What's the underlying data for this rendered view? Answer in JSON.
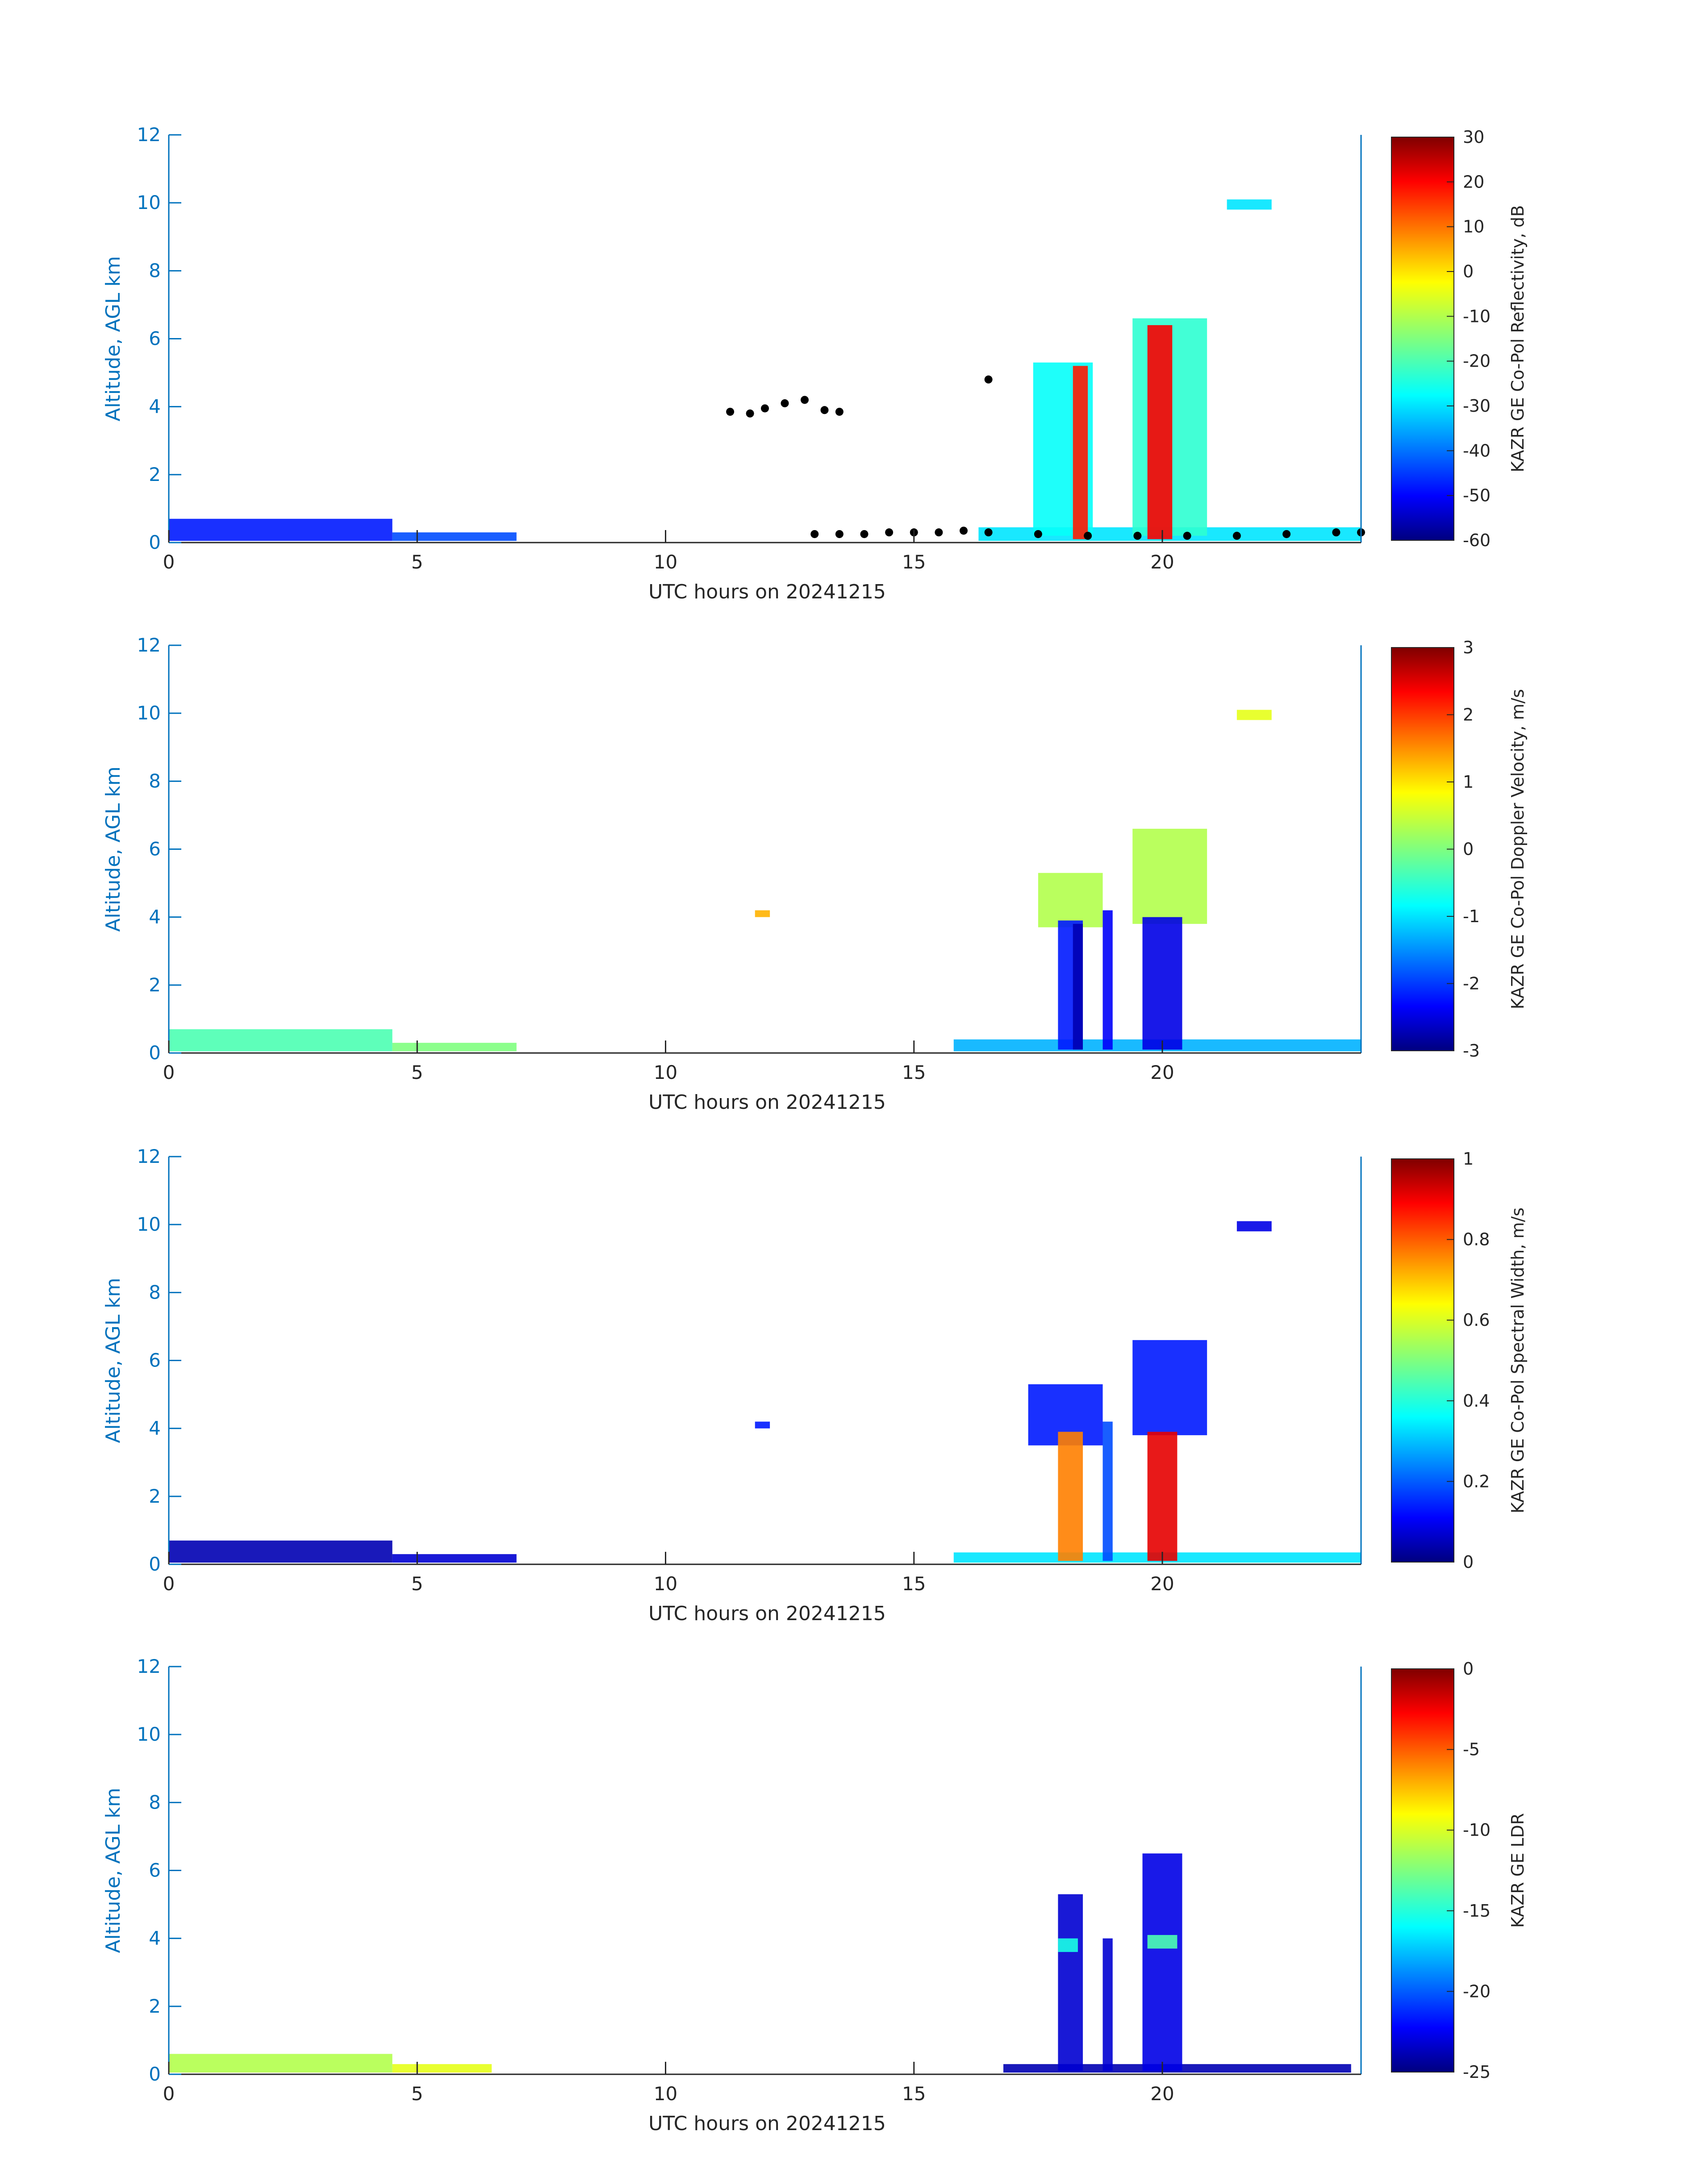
{
  "colors": {
    "axis_left": "#0072BD",
    "axis_text": "#262626",
    "colormap": [
      "#00007F",
      "#0000FF",
      "#007FFF",
      "#00FFFF",
      "#7FFF7F",
      "#FFFF00",
      "#FF7F00",
      "#FF0000",
      "#7F0000"
    ]
  },
  "chart_data": [
    {
      "type": "heatmap",
      "xlabel": "UTC hours on 20241215",
      "ylabel": "Altitude, AGL km",
      "xlim": [
        0,
        24
      ],
      "ylim": [
        0,
        12
      ],
      "x_ticks": [
        "0",
        "5",
        "10",
        "15",
        "20"
      ],
      "y_ticks": [
        "0",
        "2",
        "4",
        "6",
        "8",
        "10",
        "12"
      ],
      "colorbar": {
        "label": "KAZR GE Co-Pol Reflectivity, dB",
        "range": [
          -60,
          30
        ],
        "ticks": [
          "30",
          "20",
          "10",
          "0",
          "-10",
          "-20",
          "-30",
          "-40",
          "-50",
          "-60"
        ]
      },
      "regions": [
        {
          "x0": 0,
          "x1": 4.5,
          "y0": 0.05,
          "y1": 0.7,
          "level": 0.15
        },
        {
          "x0": 4.5,
          "x1": 7,
          "y0": 0.05,
          "y1": 0.3,
          "level": 0.2
        },
        {
          "x0": 16.3,
          "x1": 24,
          "y0": 0.05,
          "y1": 0.45,
          "level": 0.35
        },
        {
          "x0": 17.4,
          "x1": 18.6,
          "y0": 0.2,
          "y1": 5.3,
          "level": 0.38
        },
        {
          "x0": 18.2,
          "x1": 18.5,
          "y0": 0.1,
          "y1": 5.2,
          "level": 0.85
        },
        {
          "x0": 19.4,
          "x1": 20.9,
          "y0": 0.2,
          "y1": 6.6,
          "level": 0.42
        },
        {
          "x0": 19.7,
          "x1": 20.2,
          "y0": 0.1,
          "y1": 6.4,
          "level": 0.88
        },
        {
          "x0": 21.3,
          "x1": 22.2,
          "y0": 9.8,
          "y1": 10.1,
          "level": 0.35
        }
      ],
      "cloud_base_points": [
        [
          11.3,
          3.85
        ],
        [
          11.7,
          3.8
        ],
        [
          12.0,
          3.95
        ],
        [
          12.4,
          4.1
        ],
        [
          12.8,
          4.2
        ],
        [
          13.2,
          3.9
        ],
        [
          13.5,
          3.85
        ],
        [
          13.0,
          0.25
        ],
        [
          13.5,
          0.25
        ],
        [
          14.0,
          0.25
        ],
        [
          14.5,
          0.3
        ],
        [
          15.0,
          0.3
        ],
        [
          15.5,
          0.3
        ],
        [
          16.0,
          0.35
        ],
        [
          16.5,
          0.3
        ],
        [
          17.5,
          0.25
        ],
        [
          18.5,
          0.2
        ],
        [
          19.5,
          0.2
        ],
        [
          20.5,
          0.2
        ],
        [
          21.5,
          0.2
        ],
        [
          22.5,
          0.25
        ],
        [
          23.5,
          0.3
        ],
        [
          24.0,
          0.3
        ],
        [
          16.5,
          4.8
        ]
      ]
    },
    {
      "type": "heatmap",
      "xlabel": "UTC hours on 20241215",
      "ylabel": "Altitude, AGL km",
      "xlim": [
        0,
        24
      ],
      "ylim": [
        0,
        12
      ],
      "x_ticks": [
        "0",
        "5",
        "10",
        "15",
        "20"
      ],
      "y_ticks": [
        "0",
        "2",
        "4",
        "6",
        "8",
        "10",
        "12"
      ],
      "colorbar": {
        "label": "KAZR GE Co-Pol Doppler Velocity, m/s",
        "range": [
          -3,
          3
        ],
        "ticks": [
          "3",
          "2",
          "1",
          "0",
          "-1",
          "-2",
          "-3"
        ]
      },
      "regions": [
        {
          "x0": 0,
          "x1": 4.5,
          "y0": 0.05,
          "y1": 0.7,
          "level": 0.45
        },
        {
          "x0": 4.5,
          "x1": 7,
          "y0": 0.05,
          "y1": 0.3,
          "level": 0.5
        },
        {
          "x0": 15.8,
          "x1": 24,
          "y0": 0.05,
          "y1": 0.4,
          "level": 0.3
        },
        {
          "x0": 17.5,
          "x1": 18.8,
          "y0": 3.7,
          "y1": 5.3,
          "level": 0.55
        },
        {
          "x0": 17.9,
          "x1": 18.4,
          "y0": 0.1,
          "y1": 3.9,
          "level": 0.15
        },
        {
          "x0": 18.2,
          "x1": 18.4,
          "y0": 0.1,
          "y1": 3.8,
          "level": 0.05
        },
        {
          "x0": 19.4,
          "x1": 20.9,
          "y0": 3.8,
          "y1": 6.6,
          "level": 0.55
        },
        {
          "x0": 19.6,
          "x1": 20.4,
          "y0": 0.1,
          "y1": 4.0,
          "level": 0.1
        },
        {
          "x0": 18.8,
          "x1": 19.0,
          "y0": 0.1,
          "y1": 4.2,
          "level": 0.12
        },
        {
          "x0": 21.5,
          "x1": 22.2,
          "y0": 9.8,
          "y1": 10.1,
          "level": 0.6
        },
        {
          "x0": 11.8,
          "x1": 12.1,
          "y0": 4.0,
          "y1": 4.2,
          "level": 0.7
        }
      ]
    },
    {
      "type": "heatmap",
      "xlabel": "UTC hours on 20241215",
      "ylabel": "Altitude, AGL km",
      "xlim": [
        0,
        24
      ],
      "ylim": [
        0,
        12
      ],
      "x_ticks": [
        "0",
        "5",
        "10",
        "15",
        "20"
      ],
      "y_ticks": [
        "0",
        "2",
        "4",
        "6",
        "8",
        "10",
        "12"
      ],
      "colorbar": {
        "label": "KAZR GE Co-Pol Spectral Width, m/s",
        "range": [
          0,
          1
        ],
        "ticks": [
          "1",
          "0.8",
          "0.6",
          "0.4",
          "0.2",
          "0"
        ]
      },
      "regions": [
        {
          "x0": 0,
          "x1": 4.5,
          "y0": 0.05,
          "y1": 0.7,
          "level": 0.05
        },
        {
          "x0": 4.5,
          "x1": 7,
          "y0": 0.05,
          "y1": 0.3,
          "level": 0.08
        },
        {
          "x0": 15.8,
          "x1": 24,
          "y0": 0.05,
          "y1": 0.35,
          "level": 0.35
        },
        {
          "x0": 17.3,
          "x1": 18.8,
          "y0": 3.5,
          "y1": 5.3,
          "level": 0.15
        },
        {
          "x0": 17.9,
          "x1": 18.4,
          "y0": 0.1,
          "y1": 3.9,
          "level": 0.75
        },
        {
          "x0": 19.4,
          "x1": 20.9,
          "y0": 3.8,
          "y1": 6.6,
          "level": 0.15
        },
        {
          "x0": 19.7,
          "x1": 20.3,
          "y0": 0.1,
          "y1": 3.9,
          "level": 0.9
        },
        {
          "x0": 18.8,
          "x1": 19.0,
          "y0": 0.1,
          "y1": 4.2,
          "level": 0.2
        },
        {
          "x0": 21.5,
          "x1": 22.2,
          "y0": 9.8,
          "y1": 10.1,
          "level": 0.1
        },
        {
          "x0": 11.8,
          "x1": 12.1,
          "y0": 4.0,
          "y1": 4.2,
          "level": 0.15
        }
      ]
    },
    {
      "type": "heatmap",
      "xlabel": "UTC hours on 20241215",
      "ylabel": "Altitude, AGL km",
      "xlim": [
        0,
        24
      ],
      "ylim": [
        0,
        12
      ],
      "x_ticks": [
        "0",
        "5",
        "10",
        "15",
        "20"
      ],
      "y_ticks": [
        "0",
        "2",
        "4",
        "6",
        "8",
        "10",
        "12"
      ],
      "colorbar": {
        "label": "KAZR GE LDR",
        "range": [
          -25,
          0
        ],
        "ticks": [
          "0",
          "-5",
          "-10",
          "-15",
          "-20",
          "-25"
        ]
      },
      "regions": [
        {
          "x0": 0,
          "x1": 4.5,
          "y0": 0.05,
          "y1": 0.6,
          "level": 0.55
        },
        {
          "x0": 4.5,
          "x1": 6.5,
          "y0": 0.05,
          "y1": 0.3,
          "level": 0.6
        },
        {
          "x0": 16.8,
          "x1": 23.8,
          "y0": 0.05,
          "y1": 0.3,
          "level": 0.05
        },
        {
          "x0": 17.9,
          "x1": 18.4,
          "y0": 0.1,
          "y1": 5.3,
          "level": 0.08
        },
        {
          "x0": 19.6,
          "x1": 20.4,
          "y0": 0.1,
          "y1": 6.5,
          "level": 0.1
        },
        {
          "x0": 17.9,
          "x1": 18.3,
          "y0": 3.6,
          "y1": 4.0,
          "level": 0.4
        },
        {
          "x0": 19.7,
          "x1": 20.3,
          "y0": 3.7,
          "y1": 4.1,
          "level": 0.45
        },
        {
          "x0": 18.8,
          "x1": 19.0,
          "y0": 0.1,
          "y1": 4.0,
          "level": 0.08
        }
      ]
    }
  ]
}
